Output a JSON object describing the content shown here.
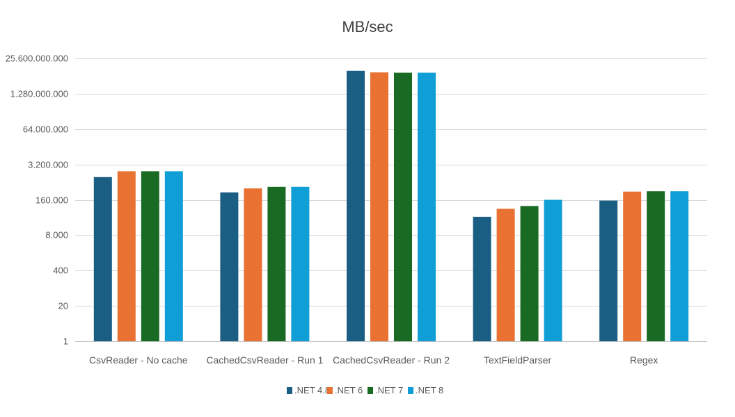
{
  "chart_data": {
    "type": "bar",
    "title": "MB/sec",
    "xlabel": "",
    "ylabel": "",
    "y_scale": "log",
    "ylim": [
      1,
      25600000000
    ],
    "y_ticks": [
      1,
      20,
      400,
      8000,
      160000,
      3200000,
      64000000,
      1280000000,
      25600000000
    ],
    "y_tick_labels": [
      "1",
      "20",
      "400",
      "8.000",
      "160.000",
      "3.200.000",
      "64.000.000",
      "1.280.000.000",
      "25.600.000.000"
    ],
    "categories": [
      "CsvReader - No cache",
      "CachedCsvReader - Run 1",
      "CachedCsvReader - Run 2",
      "TextFieldParser",
      "Regex"
    ],
    "series": [
      {
        "name": ".NET 4.8",
        "color": "#1b5e83",
        "values": [
          1100000,
          300000,
          9000000000,
          38000,
          150000
        ]
      },
      {
        "name": ".NET 6",
        "color": "#e97132",
        "values": [
          1800000,
          420000,
          7800000000,
          75000,
          320000
        ]
      },
      {
        "name": ".NET 7",
        "color": "#196b24",
        "values": [
          1800000,
          480000,
          7600000000,
          95000,
          330000
        ]
      },
      {
        "name": ".NET 8",
        "color": "#0f9ed5",
        "values": [
          1800000,
          480000,
          7600000000,
          160000,
          330000
        ]
      }
    ],
    "grid": true,
    "legend": "bottom"
  }
}
